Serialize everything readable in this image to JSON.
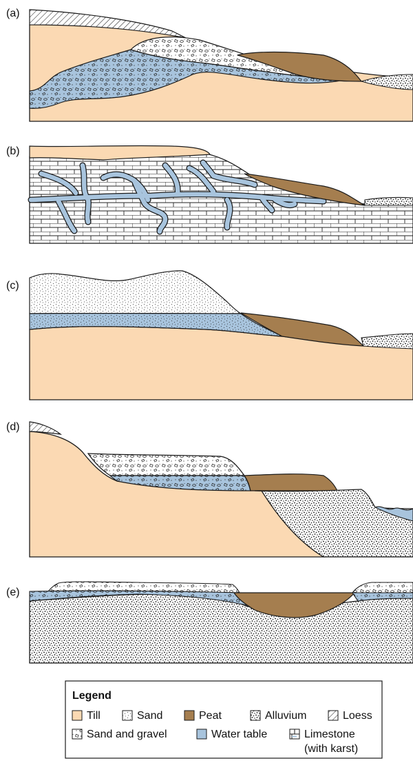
{
  "colors": {
    "till": "#fbd9b3",
    "peat": "#a57e4f",
    "water": "#a8c4dd",
    "line": "#1a1a1a"
  },
  "panels": [
    {
      "id": "a",
      "label": "(a)"
    },
    {
      "id": "b",
      "label": "(b)"
    },
    {
      "id": "c",
      "label": "(c)"
    },
    {
      "id": "d",
      "label": "(d)"
    },
    {
      "id": "e",
      "label": "(e)"
    }
  ],
  "legend": {
    "title": "Legend",
    "items": {
      "till": "Till",
      "sand": "Sand",
      "peat": "Peat",
      "alluvium": "Alluvium",
      "loess": "Loess",
      "sand_gravel": "Sand and gravel",
      "water_table": "Water table",
      "limestone_1": "Limestone",
      "limestone_2": "(with karst)"
    }
  }
}
